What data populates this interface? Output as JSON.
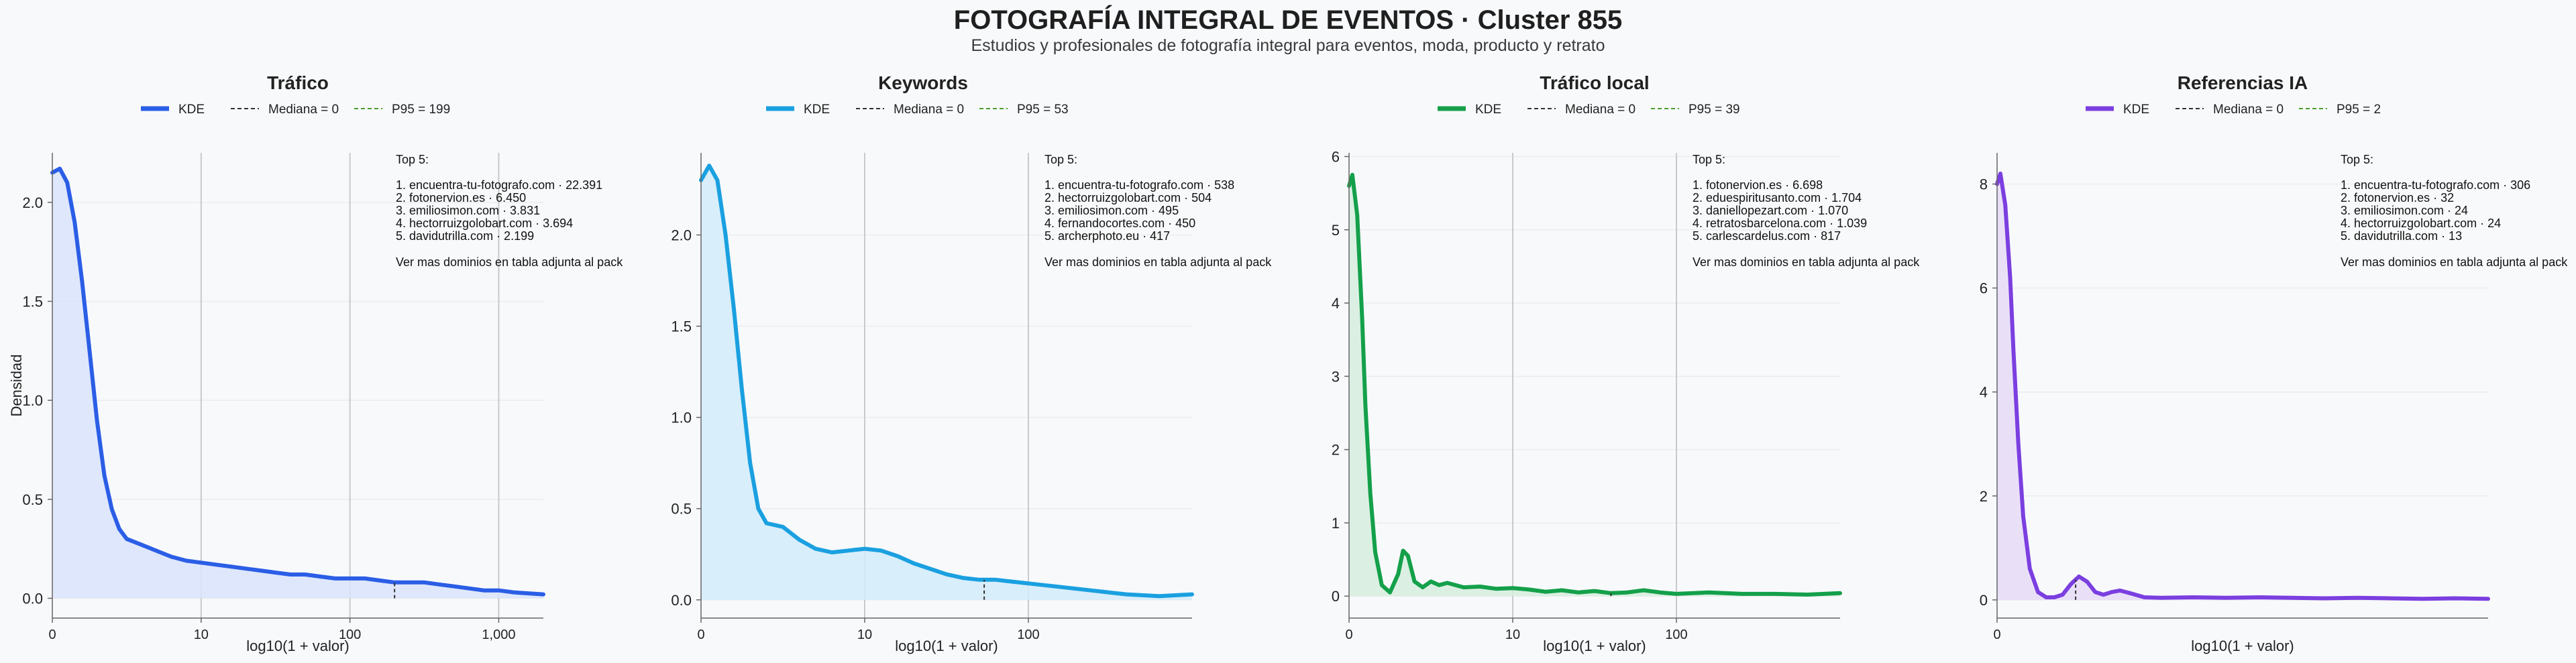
{
  "title": "FOTOGRAFÍA INTEGRAL DE EVENTOS · Cluster 855",
  "subtitle": "Estudios y profesionales de fotografía integral para eventos, moda, producto y retrato",
  "chart_data": [
    {
      "type": "area",
      "title": "Tráfico",
      "xlabel": "log10(1 + valor)",
      "ylabel": "Densidad",
      "color": "#2b5ee6",
      "fill": "#dbe4fb",
      "xlim": [
        0,
        3.3
      ],
      "ylim": [
        -0.1,
        2.25
      ],
      "x_ticks": [
        0,
        1,
        2,
        3
      ],
      "x_tick_labels": [
        "0",
        "10",
        "100",
        "1,000"
      ],
      "y_ticks": [
        0,
        0.5,
        1,
        1.5,
        2
      ],
      "y_tick_labels": [
        "0.0",
        "0.5",
        "1.0",
        "1.5",
        "2.0"
      ],
      "vlines": [
        1,
        2,
        3
      ],
      "legend": [
        "KDE",
        "Mediana = 0",
        "P95 = 199"
      ],
      "median": 0,
      "p95_log": 2.3,
      "p95_value": 199,
      "top5_header": "Top 5:",
      "top5": [
        "1. encuentra-tu-fotografo.com · 22.391",
        "2. fotonervion.es · 6.450",
        "3. emiliosimon.com · 3.831",
        "4. hectorruizgolobart.com · 3.694",
        "5. davidutrilla.com · 2.199"
      ],
      "note": "Ver mas dominios en tabla adjunta al pack",
      "points": [
        [
          0,
          2.15
        ],
        [
          0.05,
          2.17
        ],
        [
          0.1,
          2.1
        ],
        [
          0.15,
          1.9
        ],
        [
          0.2,
          1.6
        ],
        [
          0.25,
          1.25
        ],
        [
          0.3,
          0.9
        ],
        [
          0.35,
          0.62
        ],
        [
          0.4,
          0.45
        ],
        [
          0.45,
          0.35
        ],
        [
          0.5,
          0.3
        ],
        [
          0.6,
          0.27
        ],
        [
          0.7,
          0.24
        ],
        [
          0.8,
          0.21
        ],
        [
          0.9,
          0.19
        ],
        [
          1.0,
          0.18
        ],
        [
          1.1,
          0.17
        ],
        [
          1.2,
          0.16
        ],
        [
          1.3,
          0.15
        ],
        [
          1.4,
          0.14
        ],
        [
          1.5,
          0.13
        ],
        [
          1.6,
          0.12
        ],
        [
          1.7,
          0.12
        ],
        [
          1.8,
          0.11
        ],
        [
          1.9,
          0.1
        ],
        [
          2.0,
          0.1
        ],
        [
          2.1,
          0.1
        ],
        [
          2.2,
          0.09
        ],
        [
          2.3,
          0.08
        ],
        [
          2.4,
          0.08
        ],
        [
          2.5,
          0.08
        ],
        [
          2.6,
          0.07
        ],
        [
          2.7,
          0.06
        ],
        [
          2.8,
          0.05
        ],
        [
          2.9,
          0.04
        ],
        [
          3.0,
          0.04
        ],
        [
          3.1,
          0.03
        ],
        [
          3.2,
          0.025
        ],
        [
          3.3,
          0.02
        ]
      ]
    },
    {
      "type": "area",
      "title": "Keywords",
      "xlabel": "log10(1 + valor)",
      "ylabel": "",
      "color": "#1aa0e0",
      "fill": "#d2ecfa",
      "xlim": [
        0,
        3.0
      ],
      "ylim": [
        -0.1,
        2.45
      ],
      "x_ticks": [
        0,
        1,
        2
      ],
      "x_tick_labels": [
        "0",
        "10",
        "100"
      ],
      "y_ticks": [
        0,
        0.5,
        1,
        1.5,
        2
      ],
      "y_tick_labels": [
        "0.0",
        "0.5",
        "1.0",
        "1.5",
        "2.0"
      ],
      "vlines": [
        1,
        2
      ],
      "legend": [
        "KDE",
        "Mediana = 0",
        "P95 = 53"
      ],
      "median": 0,
      "p95_log": 1.73,
      "p95_value": 53,
      "top5_header": "Top 5:",
      "top5": [
        "1. encuentra-tu-fotografo.com · 538",
        "2. hectorruizgolobart.com · 504",
        "3. emiliosimon.com · 495",
        "4. fernandocortes.com · 450",
        "5. archerphoto.eu · 417"
      ],
      "note": "Ver mas dominios en tabla adjunta al pack",
      "points": [
        [
          0,
          2.3
        ],
        [
          0.05,
          2.38
        ],
        [
          0.1,
          2.3
        ],
        [
          0.15,
          2.0
        ],
        [
          0.2,
          1.6
        ],
        [
          0.25,
          1.15
        ],
        [
          0.3,
          0.75
        ],
        [
          0.35,
          0.5
        ],
        [
          0.4,
          0.42
        ],
        [
          0.5,
          0.4
        ],
        [
          0.6,
          0.33
        ],
        [
          0.7,
          0.28
        ],
        [
          0.8,
          0.26
        ],
        [
          0.9,
          0.27
        ],
        [
          1.0,
          0.28
        ],
        [
          1.1,
          0.27
        ],
        [
          1.2,
          0.24
        ],
        [
          1.3,
          0.2
        ],
        [
          1.4,
          0.17
        ],
        [
          1.5,
          0.14
        ],
        [
          1.6,
          0.12
        ],
        [
          1.7,
          0.11
        ],
        [
          1.8,
          0.11
        ],
        [
          1.9,
          0.1
        ],
        [
          2.0,
          0.09
        ],
        [
          2.2,
          0.07
        ],
        [
          2.4,
          0.05
        ],
        [
          2.6,
          0.03
        ],
        [
          2.8,
          0.02
        ],
        [
          3.0,
          0.03
        ]
      ]
    },
    {
      "type": "area",
      "title": "Tráfico local",
      "xlabel": "log10(1 + valor)",
      "ylabel": "",
      "color": "#14a04a",
      "fill": "#d6efde",
      "xlim": [
        0,
        3.0
      ],
      "ylim": [
        -0.3,
        6.05
      ],
      "x_ticks": [
        0,
        1,
        2
      ],
      "x_tick_labels": [
        "0",
        "10",
        "100"
      ],
      "y_ticks": [
        0,
        1,
        2,
        3,
        4,
        5,
        6
      ],
      "y_tick_labels": [
        "0",
        "1",
        "2",
        "3",
        "4",
        "5",
        "6"
      ],
      "vlines": [
        1,
        2
      ],
      "legend": [
        "KDE",
        "Mediana = 0",
        "P95 = 39"
      ],
      "median": 0,
      "p95_log": 1.6,
      "p95_value": 39,
      "top5_header": "Top 5:",
      "top5": [
        "1. fotonervion.es · 6.698",
        "2. eduespiritusanto.com · 1.704",
        "3. daniellopezart.com · 1.070",
        "4. retratosbarcelona.com · 1.039",
        "5. carlescardelus.com · 817"
      ],
      "note": "Ver mas dominios en tabla adjunta al pack",
      "points": [
        [
          0,
          5.6
        ],
        [
          0.02,
          5.75
        ],
        [
          0.05,
          5.2
        ],
        [
          0.08,
          3.8
        ],
        [
          0.1,
          2.6
        ],
        [
          0.13,
          1.4
        ],
        [
          0.16,
          0.6
        ],
        [
          0.2,
          0.15
        ],
        [
          0.25,
          0.05
        ],
        [
          0.3,
          0.3
        ],
        [
          0.33,
          0.62
        ],
        [
          0.36,
          0.55
        ],
        [
          0.4,
          0.2
        ],
        [
          0.45,
          0.12
        ],
        [
          0.5,
          0.2
        ],
        [
          0.55,
          0.15
        ],
        [
          0.6,
          0.18
        ],
        [
          0.7,
          0.12
        ],
        [
          0.8,
          0.13
        ],
        [
          0.9,
          0.1
        ],
        [
          1.0,
          0.11
        ],
        [
          1.1,
          0.09
        ],
        [
          1.2,
          0.06
        ],
        [
          1.3,
          0.08
        ],
        [
          1.4,
          0.05
        ],
        [
          1.5,
          0.07
        ],
        [
          1.6,
          0.04
        ],
        [
          1.7,
          0.05
        ],
        [
          1.8,
          0.08
        ],
        [
          1.9,
          0.05
        ],
        [
          2.0,
          0.03
        ],
        [
          2.2,
          0.05
        ],
        [
          2.4,
          0.03
        ],
        [
          2.6,
          0.03
        ],
        [
          2.8,
          0.02
        ],
        [
          3.0,
          0.04
        ]
      ]
    },
    {
      "type": "area",
      "title": "Referencias IA",
      "xlabel": "log10(1 + valor)",
      "ylabel": "",
      "color": "#7b3fe0",
      "fill": "#e6dcf7",
      "xlim": [
        0,
        3.0
      ],
      "ylim": [
        -0.35,
        8.6
      ],
      "x_ticks": [
        0
      ],
      "x_tick_labels": [
        "0"
      ],
      "y_ticks": [
        0,
        2,
        4,
        6,
        8
      ],
      "y_tick_labels": [
        "0",
        "2",
        "4",
        "6",
        "8"
      ],
      "vlines": [],
      "legend": [
        "KDE",
        "Mediana = 0",
        "P95 = 2"
      ],
      "median": 0,
      "p95_log": 0.48,
      "p95_value": 2,
      "top5_header": "Top 5:",
      "top5": [
        "1. encuentra-tu-fotografo.com · 306",
        "2. fotonervion.es · 32",
        "3. emiliosimon.com · 24",
        "4. hectorruizgolobart.com · 24",
        "5. davidutrilla.com · 13"
      ],
      "note": "Ver mas dominios en tabla adjunta al pack",
      "points": [
        [
          0,
          8.0
        ],
        [
          0.02,
          8.2
        ],
        [
          0.05,
          7.6
        ],
        [
          0.08,
          6.2
        ],
        [
          0.1,
          4.8
        ],
        [
          0.13,
          3.0
        ],
        [
          0.16,
          1.6
        ],
        [
          0.2,
          0.6
        ],
        [
          0.25,
          0.15
        ],
        [
          0.3,
          0.05
        ],
        [
          0.35,
          0.05
        ],
        [
          0.4,
          0.1
        ],
        [
          0.45,
          0.3
        ],
        [
          0.5,
          0.45
        ],
        [
          0.55,
          0.35
        ],
        [
          0.6,
          0.15
        ],
        [
          0.65,
          0.1
        ],
        [
          0.7,
          0.15
        ],
        [
          0.75,
          0.18
        ],
        [
          0.8,
          0.14
        ],
        [
          0.9,
          0.05
        ],
        [
          1.0,
          0.04
        ],
        [
          1.2,
          0.05
        ],
        [
          1.4,
          0.04
        ],
        [
          1.6,
          0.05
        ],
        [
          1.8,
          0.04
        ],
        [
          2.0,
          0.03
        ],
        [
          2.2,
          0.04
        ],
        [
          2.4,
          0.03
        ],
        [
          2.6,
          0.02
        ],
        [
          2.8,
          0.03
        ],
        [
          3.0,
          0.02
        ]
      ]
    }
  ]
}
